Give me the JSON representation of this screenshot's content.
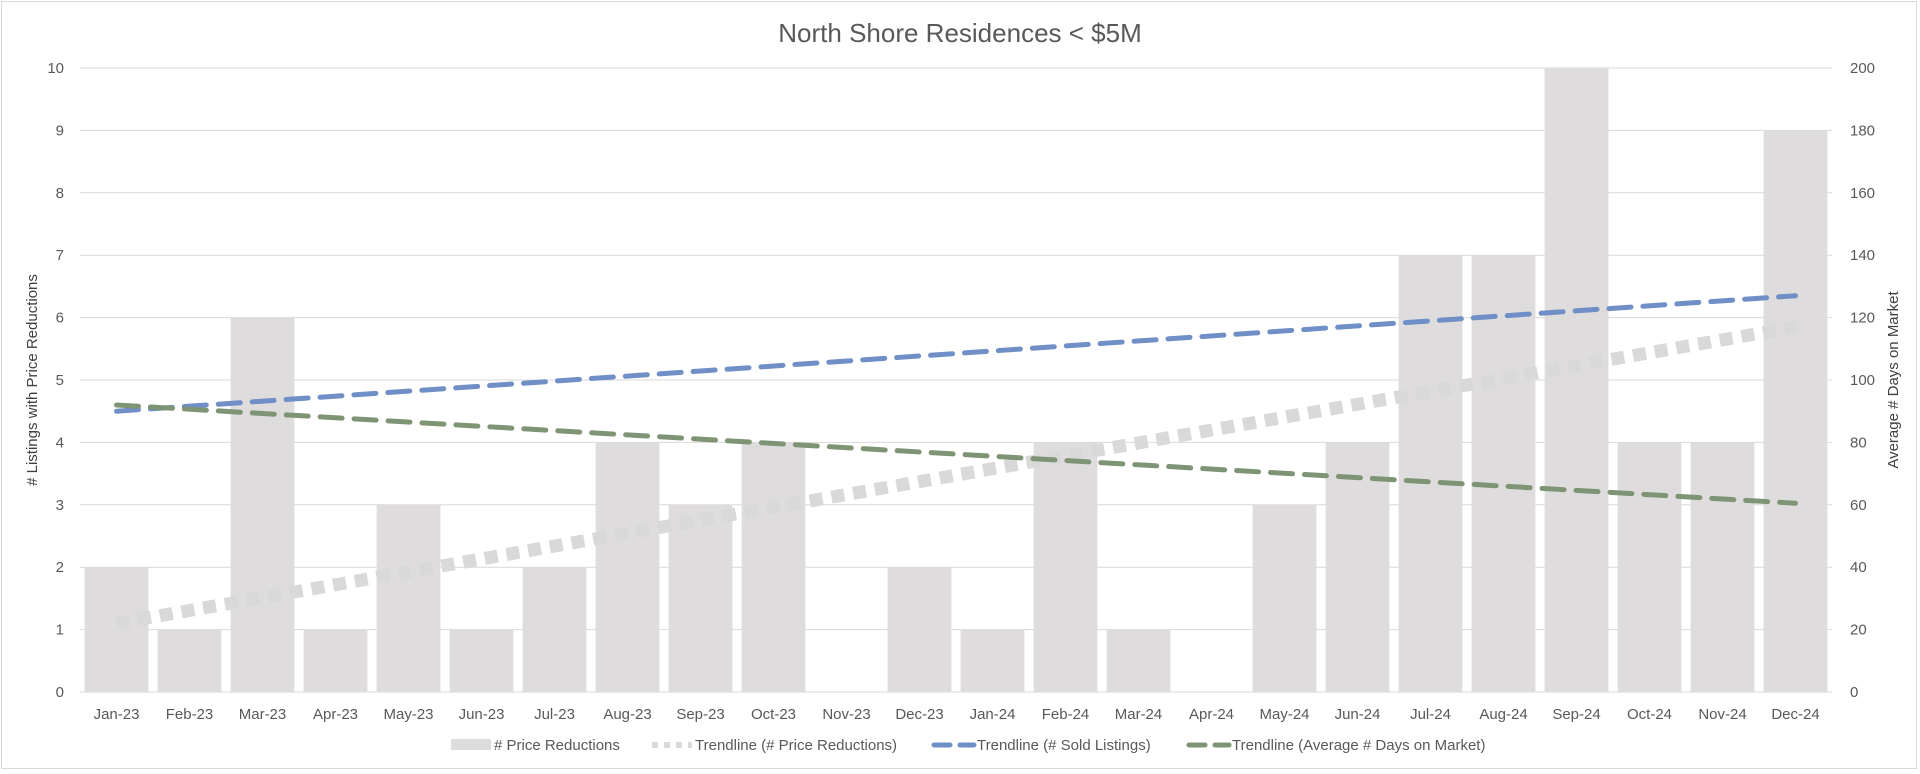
{
  "chart_data": {
    "type": "bar",
    "title": "North Shore Residences < $5M",
    "ylabel": "# Listings with Price Reductions",
    "y2label": "Average # Days on Market",
    "ylim": [
      0,
      10
    ],
    "y2lim": [
      0,
      200
    ],
    "yticks": [
      "0",
      "1",
      "2",
      "3",
      "4",
      "5",
      "6",
      "7",
      "8",
      "9",
      "10"
    ],
    "y2ticks": [
      "0",
      "20",
      "40",
      "60",
      "80",
      "100",
      "120",
      "140",
      "160",
      "180",
      "200"
    ],
    "grid": true,
    "legend_position": "bottom",
    "categories": [
      "Jan-23",
      "Feb-23",
      "Mar-23",
      "Apr-23",
      "May-23",
      "Jun-23",
      "Jul-23",
      "Aug-23",
      "Sep-23",
      "Oct-23",
      "Nov-23",
      "Dec-23",
      "Jan-24",
      "Feb-24",
      "Mar-24",
      "Apr-24",
      "May-24",
      "Jun-24",
      "Jul-24",
      "Aug-24",
      "Sep-24",
      "Oct-24",
      "Nov-24",
      "Dec-24"
    ],
    "series": [
      {
        "name": "# Price Reductions",
        "type": "bar",
        "axis": "left",
        "color": "#dedcdc",
        "values": [
          2,
          1,
          6,
          1,
          3,
          1,
          2,
          4,
          3,
          4,
          0,
          2,
          1,
          4,
          1,
          0,
          3,
          4,
          7,
          7,
          10,
          4,
          4,
          9
        ]
      },
      {
        "name": "Trendline (# Price Reductions)",
        "type": "trendline",
        "axis": "left",
        "color": "#d9d9d9",
        "style": "dotted",
        "start": 1.1,
        "end": 5.85
      },
      {
        "name": "Trendline (# Sold Listings)",
        "type": "trendline",
        "axis": "right",
        "color": "#6f8fc6",
        "style": "dashed",
        "start": 90,
        "end": 127
      },
      {
        "name": "Trendline (Average # Days on Market)",
        "type": "trendline",
        "axis": "right",
        "color": "#7f9474",
        "style": "dashed",
        "start": 92,
        "end": 60.5
      }
    ]
  }
}
